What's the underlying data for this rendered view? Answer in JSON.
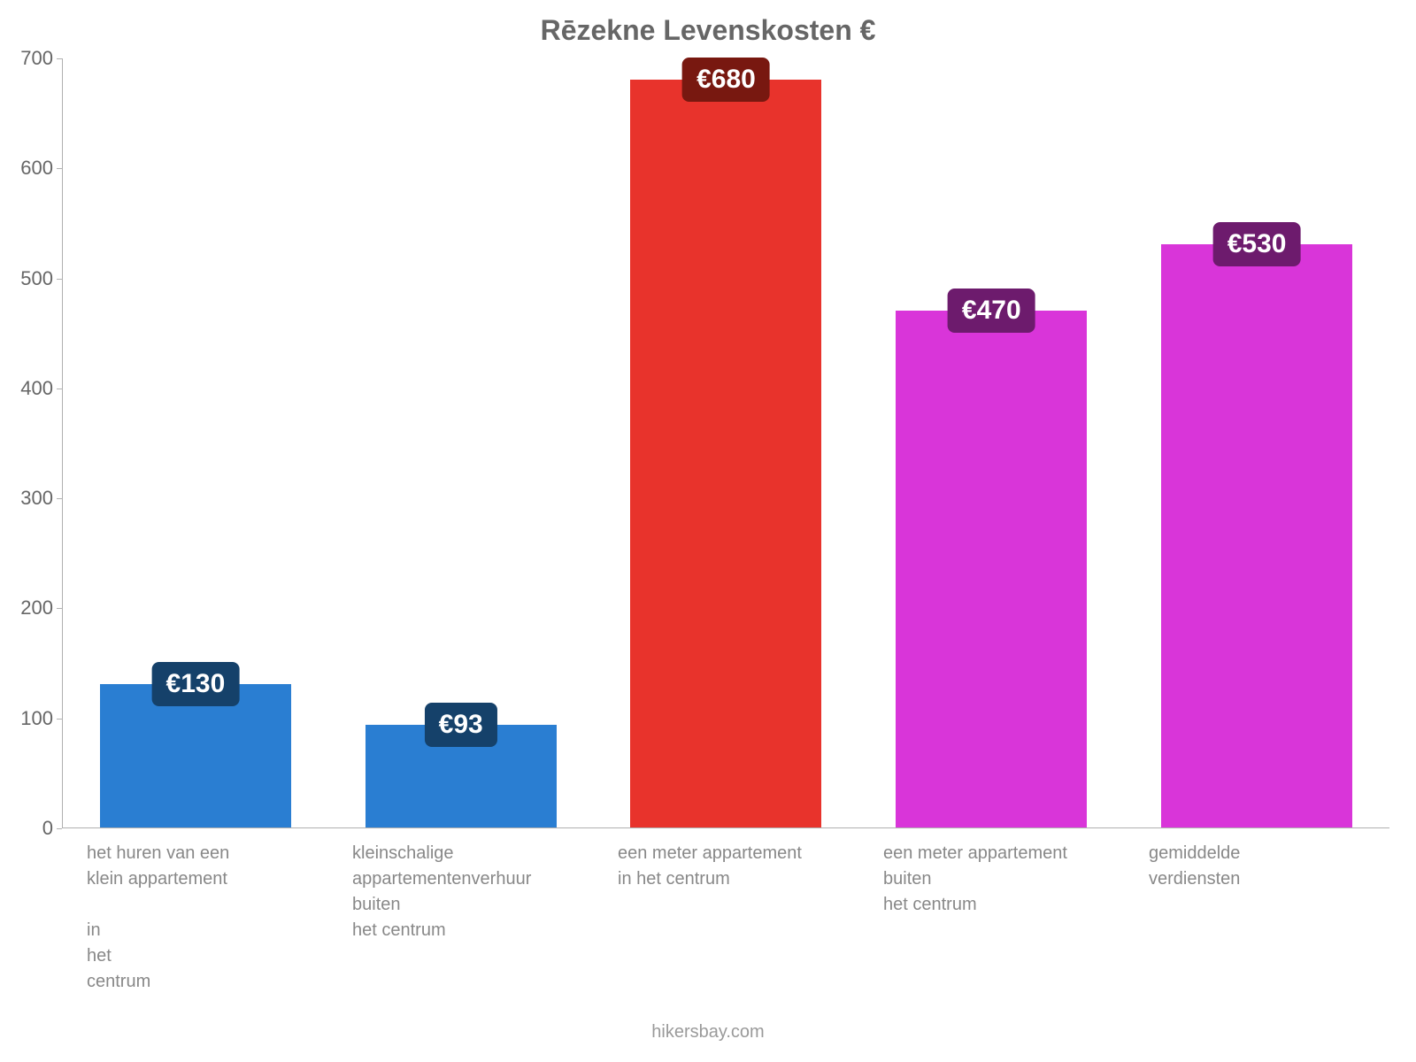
{
  "chart": {
    "type": "bar",
    "title": "Rēzekne Levenskosten €",
    "title_fontsize": 32,
    "title_color": "#666666",
    "background_color": "#ffffff",
    "axis_color": "#b0b0b0",
    "tick_label_color": "#666666",
    "xlabel_color": "#888888",
    "attribution": "hikersbay.com",
    "attribution_color": "#9a9a9a",
    "ylim": [
      0,
      700
    ],
    "ytick_step": 100,
    "yticks": [
      0,
      100,
      200,
      300,
      400,
      500,
      600,
      700
    ],
    "bar_width_ratio": 0.72,
    "value_label_fontsize": 30,
    "tick_fontsize": 22,
    "xlabel_fontsize": 20,
    "bars": [
      {
        "label": "het huren van een\nklein appartement\n\nin\nhet\ncentrum",
        "value": 130,
        "display_value": "€130",
        "bar_color": "#2a7ed2",
        "badge_bg": "#15416a",
        "badge_text_color": "#ffffff"
      },
      {
        "label": "kleinschalige\nappartementenverhuur\nbuiten\nhet centrum",
        "value": 93,
        "display_value": "€93",
        "bar_color": "#2a7ed2",
        "badge_bg": "#15416a",
        "badge_text_color": "#ffffff"
      },
      {
        "label": "een meter appartement\nin het centrum",
        "value": 680,
        "display_value": "€680",
        "bar_color": "#e8332c",
        "badge_bg": "#781810",
        "badge_text_color": "#ffffff"
      },
      {
        "label": "een meter appartement\nbuiten\nhet centrum",
        "value": 470,
        "display_value": "€470",
        "bar_color": "#d935d9",
        "badge_bg": "#6d1b6d",
        "badge_text_color": "#ffffff"
      },
      {
        "label": "gemiddelde\nverdiensten",
        "value": 530,
        "display_value": "€530",
        "bar_color": "#d935d9",
        "badge_bg": "#6d1b6d",
        "badge_text_color": "#ffffff"
      }
    ]
  }
}
